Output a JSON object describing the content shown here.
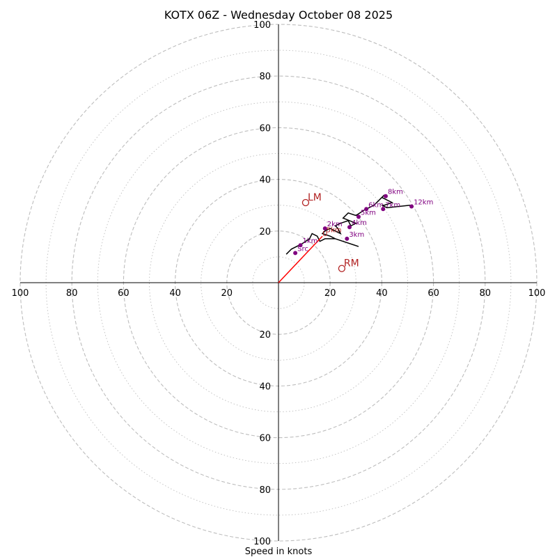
{
  "chart_data": {
    "type": "hodograph",
    "title": "KOTX 06Z - Wednesday October 08 2025",
    "xlabel": "Speed in knots",
    "range": 100,
    "ring_major": [
      20,
      40,
      60,
      80,
      100
    ],
    "ring_minor": [
      10,
      30,
      50,
      70,
      90
    ],
    "tick_labels": [
      "20",
      "40",
      "60",
      "80",
      "100"
    ],
    "hodo_line": [
      [
        3,
        11
      ],
      [
        5,
        13
      ],
      [
        9,
        15
      ],
      [
        12,
        17
      ],
      [
        13,
        19
      ],
      [
        15,
        18
      ],
      [
        16,
        16
      ],
      [
        18,
        17
      ],
      [
        22,
        17
      ],
      [
        20,
        18
      ],
      [
        17,
        19
      ],
      [
        18,
        20
      ],
      [
        20,
        21
      ],
      [
        22,
        20
      ],
      [
        24,
        19
      ],
      [
        23,
        21
      ],
      [
        22,
        22
      ],
      [
        24,
        23
      ],
      [
        27,
        24
      ],
      [
        28,
        22
      ],
      [
        30,
        23
      ],
      [
        25,
        25
      ],
      [
        27,
        27
      ],
      [
        30,
        26
      ],
      [
        33,
        28
      ],
      [
        37,
        30
      ],
      [
        41,
        34
      ],
      [
        40,
        33
      ],
      [
        44,
        31
      ],
      [
        41,
        30
      ],
      [
        40,
        30
      ],
      [
        42,
        29
      ],
      [
        51,
        30
      ]
    ],
    "trailing_segment": [
      [
        22,
        17
      ],
      [
        31,
        14
      ]
    ],
    "storm_motion_line": [
      [
        0,
        0
      ],
      [
        17,
        18
      ]
    ],
    "height_points": [
      {
        "label": "Src",
        "u": 6.5,
        "v": 11.5
      },
      {
        "label": "1km",
        "u": 8.5,
        "v": 14.5
      },
      {
        "label": "2km",
        "u": 18,
        "v": 21
      },
      {
        "label": "3km",
        "u": 26.5,
        "v": 17
      },
      {
        "label": "4km",
        "u": 27.5,
        "v": 21.5
      },
      {
        "label": "5km",
        "u": 31,
        "v": 25.5
      },
      {
        "label": "6km",
        "u": 34,
        "v": 28.5
      },
      {
        "label": "7km",
        "u": 40.5,
        "v": 28.5
      },
      {
        "label": "8km",
        "u": 41.5,
        "v": 33.5
      },
      {
        "label": "12km",
        "u": 51.5,
        "v": 29.5
      }
    ],
    "markers": [
      {
        "label": "LM",
        "u": 10.5,
        "v": 31
      },
      {
        "label": "RM",
        "u": 24.5,
        "v": 5.5
      }
    ],
    "bunkers_labels": [
      {
        "label": "U",
        "u": 17,
        "v": 18
      },
      {
        "label": "5km",
        "u": 18.5,
        "v": 19.5
      }
    ],
    "colors": {
      "hodo": "#000000",
      "points": "#800080",
      "markers": "#b22222",
      "storm_line": "#ff0000",
      "grid": "#bdbdbd"
    }
  }
}
